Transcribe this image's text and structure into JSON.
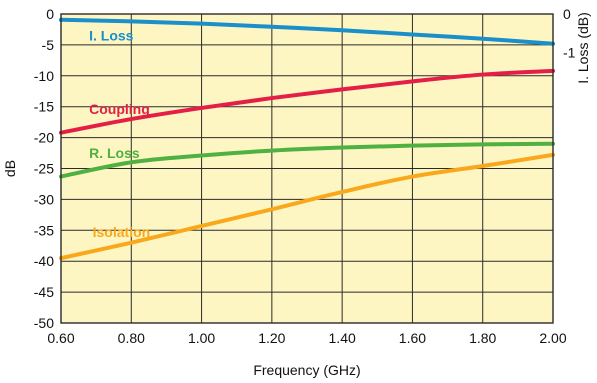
{
  "colors": {
    "background": "#ffffff",
    "plot_background": "#fdf6c3",
    "grid": "#2a2a2a",
    "axis_text": "#111111"
  },
  "chart_data": {
    "type": "line",
    "xlabel": "Frequency (GHz)",
    "ylabel": "dB",
    "y2label": "I. Loss (dB)",
    "xlim": [
      0.6,
      2.0
    ],
    "ylim": [
      -50,
      0
    ],
    "y2lim": [
      -8,
      0
    ],
    "grid": true,
    "x_ticks": [
      0.6,
      0.8,
      1.0,
      1.2,
      1.4,
      1.6,
      1.8,
      2.0
    ],
    "x_tick_labels": [
      "0.60",
      "0.80",
      "1.00",
      "1.20",
      "1.40",
      "1.60",
      "1.80",
      "2.00"
    ],
    "y_ticks": [
      0,
      -5,
      -10,
      -15,
      -20,
      -25,
      -30,
      -35,
      -40,
      -45,
      -50
    ],
    "y_tick_labels": [
      "0",
      "-5",
      "-10",
      "-15",
      "-20",
      "-25",
      "-30",
      "-35",
      "-40",
      "-45",
      "-50"
    ],
    "y2_ticks": [
      0,
      -1
    ],
    "y2_tick_labels": [
      "0",
      "-1"
    ],
    "x": [
      0.6,
      0.8,
      1.0,
      1.2,
      1.4,
      1.6,
      1.8,
      2.0
    ],
    "series": [
      {
        "name": "I. Loss",
        "axis": "right",
        "color": "#1a8fc9",
        "values": [
          -0.15,
          -0.19,
          -0.25,
          -0.33,
          -0.42,
          -0.53,
          -0.64,
          -0.77
        ]
      },
      {
        "name": "Coupling",
        "color": "#e41e47",
        "values": [
          -19.2,
          -17.0,
          -15.2,
          -13.6,
          -12.2,
          -10.9,
          -9.8,
          -9.2
        ]
      },
      {
        "name": "R. Loss",
        "color": "#4fb141",
        "values": [
          -26.3,
          -24.0,
          -22.9,
          -22.1,
          -21.6,
          -21.3,
          -21.1,
          -21.0
        ]
      },
      {
        "name": "Isolation",
        "color": "#f9a81c",
        "values": [
          -39.5,
          -37.0,
          -34.3,
          -31.6,
          -28.8,
          -26.3,
          -24.6,
          -22.8
        ]
      }
    ]
  }
}
